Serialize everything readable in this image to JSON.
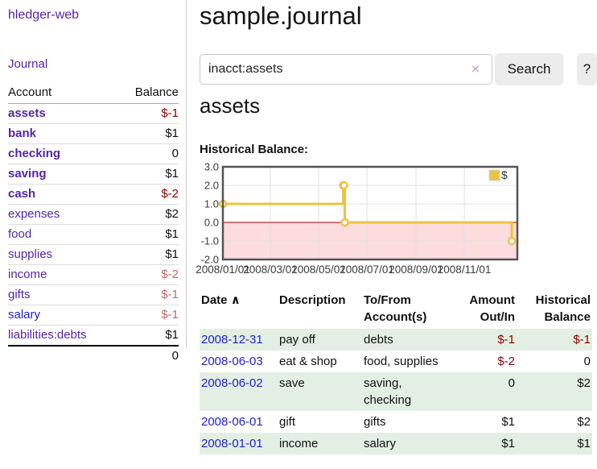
{
  "app": {
    "title": "hledger-web"
  },
  "nav": {
    "journal_label": "Journal"
  },
  "sidebar": {
    "headers": {
      "account": "Account",
      "balance": "Balance"
    },
    "accounts": [
      {
        "name": "assets",
        "balance": "$-1",
        "depth": 1,
        "emphasized": true
      },
      {
        "name": "bank",
        "balance": "$1",
        "depth": 2,
        "emphasized": true
      },
      {
        "name": "checking",
        "balance": "0",
        "depth": 3,
        "emphasized": true
      },
      {
        "name": "saving",
        "balance": "$1",
        "depth": 3,
        "emphasized": true
      },
      {
        "name": "cash",
        "balance": "$-2",
        "depth": 2,
        "emphasized": true
      },
      {
        "name": "expenses",
        "balance": "$2",
        "depth": 1,
        "emphasized": false
      },
      {
        "name": "food",
        "balance": "$1",
        "depth": 2,
        "emphasized": false
      },
      {
        "name": "supplies",
        "balance": "$1",
        "depth": 2,
        "emphasized": false
      },
      {
        "name": "income",
        "balance": "$-2",
        "depth": 1,
        "emphasized": false
      },
      {
        "name": "gifts",
        "balance": "$-1",
        "depth": 2,
        "emphasized": false
      },
      {
        "name": "salary",
        "balance": "$-1",
        "depth": 2,
        "emphasized": false,
        "link_color": "#2222cc"
      },
      {
        "name": "liabilities:debts",
        "balance": "$1",
        "depth": 1,
        "emphasized": false
      }
    ],
    "total": "0"
  },
  "header": {
    "title": "sample.journal"
  },
  "search": {
    "value": "inacct:assets",
    "clear_icon": "×",
    "button_label": "Search",
    "help_label": "?"
  },
  "account_page": {
    "heading": "assets"
  },
  "chart_data": {
    "type": "line",
    "title": "Historical Balance:",
    "steps": true,
    "series": [
      {
        "name": "$",
        "color": "#edc240",
        "points": [
          {
            "date": "2008-01-01",
            "day": 0,
            "value": 1
          },
          {
            "date": "2008-06-01",
            "day": 152,
            "value": 2
          },
          {
            "date": "2008-06-02",
            "day": 153,
            "value": 2
          },
          {
            "date": "2008-06-03",
            "day": 154,
            "value": 0
          },
          {
            "date": "2008-12-31",
            "day": 365,
            "value": -1
          }
        ]
      }
    ],
    "ylim": [
      -2,
      3
    ],
    "yticks": [
      "3.0",
      "2.0",
      "1.0",
      "0.0",
      "-1.0",
      "-2.0"
    ],
    "xticks": [
      {
        "label": "2008/01/01",
        "day": 0
      },
      {
        "label": "2008/03/01",
        "day": 60
      },
      {
        "label": "2008/05/01",
        "day": 121
      },
      {
        "label": "2008/07/01",
        "day": 182
      },
      {
        "label": "2008/09/01",
        "day": 244
      },
      {
        "label": "2008/11/01",
        "day": 305
      }
    ],
    "xlim_days": [
      0,
      372
    ],
    "legend_label": "$",
    "legend_position": "top-right",
    "grid": true,
    "colors": {
      "series": "#edc240",
      "negative_region": "#fcdcdc",
      "zero_line": "#aa0000",
      "grid_line": "#e0e0e0",
      "plot_border": "#545454",
      "tick_text": "#3a3a3a"
    }
  },
  "register_table": {
    "headers": {
      "date": "Date",
      "sort_icon": "∧",
      "description": "Description",
      "accounts": "To/From Account(s)",
      "amount": "Amount Out/In",
      "balance": "Historical Balance"
    },
    "rows": [
      {
        "date": "2008-12-31",
        "description": "pay off",
        "accounts": "debts",
        "amount": "$-1",
        "balance": "$-1"
      },
      {
        "date": "2008-06-03",
        "description": "eat & shop",
        "accounts": "food, supplies",
        "amount": "$-2",
        "balance": "0"
      },
      {
        "date": "2008-06-02",
        "description": "save",
        "accounts": "saving, checking",
        "amount": "0",
        "balance": "$2"
      },
      {
        "date": "2008-06-01",
        "description": "gift",
        "accounts": "gifts",
        "amount": "$1",
        "balance": "$2"
      },
      {
        "date": "2008-01-01",
        "description": "income",
        "accounts": "salary",
        "amount": "$1",
        "balance": "$1"
      }
    ]
  },
  "colors": {
    "link_purple": "#5326a8",
    "link_blue": "#2222cc",
    "negative_strong": "#8b0000",
    "negative_muted": "#bb6a6a",
    "stripe_green": "#e3efe3"
  }
}
